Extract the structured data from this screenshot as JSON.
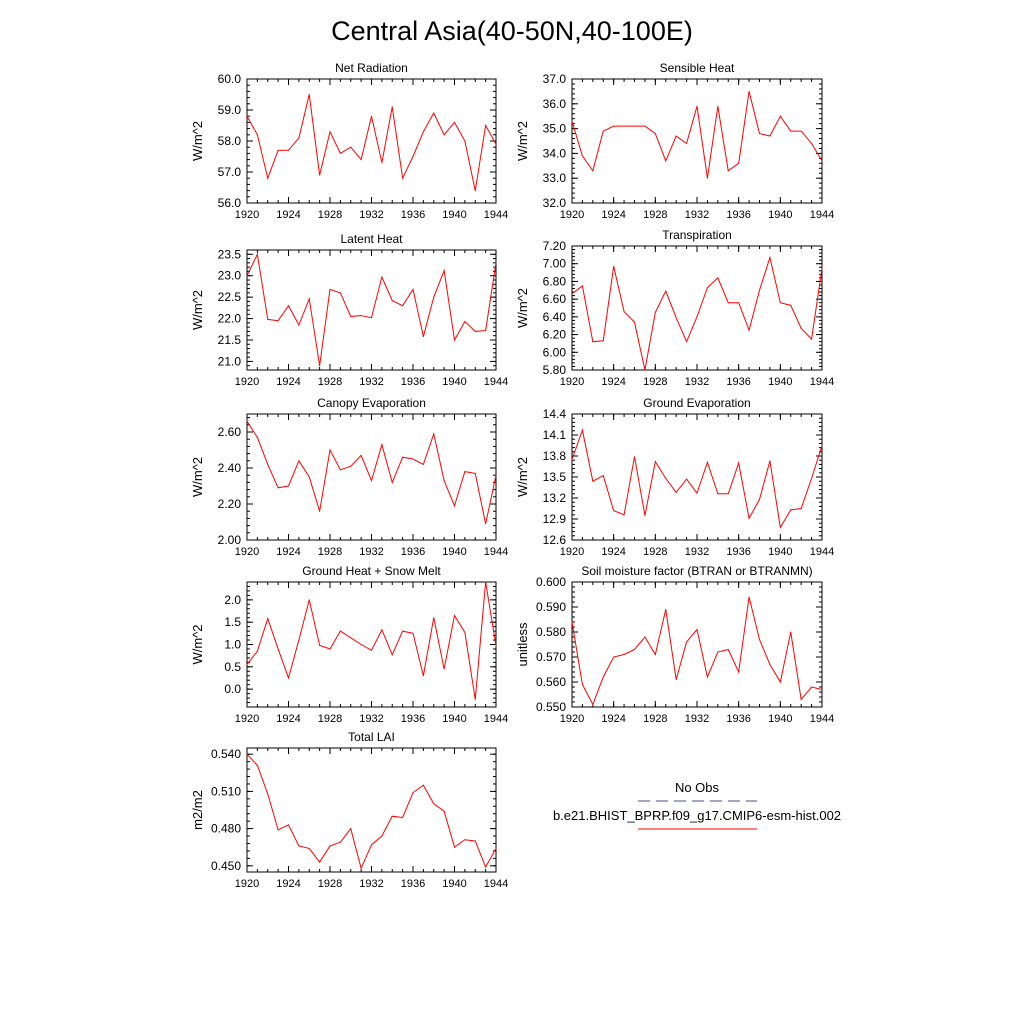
{
  "figure": {
    "title": "Central Asia(40-50N,40-100E)",
    "line_color": "#ff0000",
    "axis_color": "#000000",
    "legend": {
      "obs_label": "No Obs",
      "model_label": "b.e21.BHIST_BPRP.f09_g17.CMIP6-esm-hist.002",
      "obs_style": "dashed",
      "obs_color": "#4a4a8a",
      "model_color": "#ff0000"
    }
  },
  "chart_data": [
    {
      "type": "line",
      "title": "Net Radiation",
      "ylabel": "W/m^2",
      "xlim": [
        1920,
        1944
      ],
      "ylim": [
        56.0,
        60.0
      ],
      "yticks": [
        "56.0",
        "57.0",
        "58.0",
        "59.0",
        "60.0"
      ],
      "xticks": [
        "1920",
        "1924",
        "1928",
        "1932",
        "1936",
        "1940",
        "1944"
      ],
      "x": [
        1920,
        1921,
        1922,
        1923,
        1924,
        1925,
        1926,
        1927,
        1928,
        1929,
        1930,
        1931,
        1932,
        1933,
        1934,
        1935,
        1936,
        1937,
        1938,
        1939,
        1940,
        1941,
        1942,
        1943,
        1944
      ],
      "series": [
        {
          "values": [
            58.8,
            58.2,
            56.8,
            57.7,
            57.7,
            58.1,
            59.5,
            56.9,
            58.3,
            57.6,
            57.8,
            57.4,
            58.8,
            57.3,
            59.1,
            56.8,
            57.5,
            58.3,
            58.9,
            58.2,
            58.6,
            58.0,
            56.4,
            58.5,
            57.9
          ]
        }
      ]
    },
    {
      "type": "line",
      "title": "Sensible Heat",
      "ylabel": "W/m^2",
      "xlim": [
        1920,
        1944
      ],
      "ylim": [
        32.0,
        37.0
      ],
      "yticks": [
        "32.0",
        "33.0",
        "34.0",
        "35.0",
        "36.0",
        "37.0"
      ],
      "xticks": [
        "1920",
        "1924",
        "1928",
        "1932",
        "1936",
        "1940",
        "1944"
      ],
      "x": [
        1920,
        1921,
        1922,
        1923,
        1924,
        1925,
        1926,
        1927,
        1928,
        1929,
        1930,
        1931,
        1932,
        1933,
        1934,
        1935,
        1936,
        1937,
        1938,
        1939,
        1940,
        1941,
        1942,
        1943,
        1944
      ],
      "series": [
        {
          "values": [
            35.3,
            33.9,
            33.3,
            34.9,
            35.1,
            35.1,
            35.1,
            35.1,
            34.8,
            33.7,
            34.7,
            34.4,
            35.9,
            33.0,
            35.9,
            33.3,
            33.6,
            36.5,
            34.8,
            34.7,
            35.5,
            34.9,
            34.9,
            34.4,
            33.7
          ]
        }
      ]
    },
    {
      "type": "line",
      "title": "Latent Heat",
      "ylabel": "W/m^2",
      "xlim": [
        1920,
        1944
      ],
      "ylim": [
        20.8,
        23.6
      ],
      "yticks": [
        "21.0",
        "21.5",
        "22.0",
        "22.5",
        "23.0",
        "23.5"
      ],
      "ytick_values": [
        21.0,
        21.5,
        22.0,
        22.5,
        23.0,
        23.5
      ],
      "xticks": [
        "1920",
        "1924",
        "1928",
        "1932",
        "1936",
        "1940",
        "1944"
      ],
      "x": [
        1920,
        1921,
        1922,
        1923,
        1924,
        1925,
        1926,
        1927,
        1928,
        1929,
        1930,
        1931,
        1932,
        1933,
        1934,
        1935,
        1936,
        1937,
        1938,
        1939,
        1940,
        1941,
        1942,
        1943,
        1944
      ],
      "series": [
        {
          "values": [
            23.0,
            23.5,
            21.98,
            21.95,
            22.3,
            21.85,
            22.46,
            20.9,
            22.68,
            22.6,
            22.05,
            22.07,
            22.02,
            22.97,
            22.42,
            22.3,
            22.68,
            21.58,
            22.5,
            23.12,
            21.5,
            21.93,
            21.7,
            21.72,
            23.3
          ]
        }
      ]
    },
    {
      "type": "line",
      "title": "Transpiration",
      "ylabel": "W/m^2",
      "xlim": [
        1920,
        1944
      ],
      "ylim": [
        5.8,
        7.2
      ],
      "yticks": [
        "5.80",
        "6.00",
        "6.20",
        "6.40",
        "6.60",
        "6.80",
        "7.00",
        "7.20"
      ],
      "xticks": [
        "1920",
        "1924",
        "1928",
        "1932",
        "1936",
        "1940",
        "1944"
      ],
      "x": [
        1920,
        1921,
        1922,
        1923,
        1924,
        1925,
        1926,
        1927,
        1928,
        1929,
        1930,
        1931,
        1932,
        1933,
        1934,
        1935,
        1936,
        1937,
        1938,
        1939,
        1940,
        1941,
        1942,
        1943,
        1944
      ],
      "series": [
        {
          "values": [
            6.66,
            6.75,
            6.12,
            6.13,
            6.97,
            6.46,
            6.34,
            5.8,
            6.45,
            6.69,
            6.39,
            6.12,
            6.4,
            6.73,
            6.84,
            6.56,
            6.56,
            6.25,
            6.7,
            7.07,
            6.56,
            6.53,
            6.27,
            6.15,
            6.95
          ]
        }
      ]
    },
    {
      "type": "line",
      "title": "Canopy Evaporation",
      "ylabel": "W/m^2",
      "xlim": [
        1920,
        1944
      ],
      "ylim": [
        2.0,
        2.7
      ],
      "yticks": [
        "2.00",
        "2.20",
        "2.40",
        "2.60"
      ],
      "ytick_values": [
        2.0,
        2.2,
        2.4,
        2.6
      ],
      "xticks": [
        "1920",
        "1924",
        "1928",
        "1932",
        "1936",
        "1940",
        "1944"
      ],
      "x": [
        1920,
        1921,
        1922,
        1923,
        1924,
        1925,
        1926,
        1927,
        1928,
        1929,
        1930,
        1931,
        1932,
        1933,
        1934,
        1935,
        1936,
        1937,
        1938,
        1939,
        1940,
        1941,
        1942,
        1943,
        1944
      ],
      "series": [
        {
          "values": [
            2.66,
            2.57,
            2.42,
            2.29,
            2.3,
            2.44,
            2.35,
            2.16,
            2.5,
            2.39,
            2.41,
            2.47,
            2.33,
            2.53,
            2.32,
            2.46,
            2.45,
            2.42,
            2.59,
            2.33,
            2.19,
            2.38,
            2.37,
            2.09,
            2.36
          ]
        }
      ]
    },
    {
      "type": "line",
      "title": "Ground Evaporation",
      "ylabel": "W/m^2",
      "xlim": [
        1920,
        1944
      ],
      "ylim": [
        12.6,
        14.4
      ],
      "yticks": [
        "12.6",
        "12.9",
        "13.2",
        "13.5",
        "13.8",
        "14.1",
        "14.4"
      ],
      "xticks": [
        "1920",
        "1924",
        "1928",
        "1932",
        "1936",
        "1940",
        "1944"
      ],
      "x": [
        1920,
        1921,
        1922,
        1923,
        1924,
        1925,
        1926,
        1927,
        1928,
        1929,
        1930,
        1931,
        1932,
        1933,
        1934,
        1935,
        1936,
        1937,
        1938,
        1939,
        1940,
        1941,
        1942,
        1943,
        1944
      ],
      "series": [
        {
          "values": [
            13.75,
            14.17,
            13.44,
            13.52,
            13.02,
            12.96,
            13.79,
            12.95,
            13.72,
            13.48,
            13.28,
            13.47,
            13.27,
            13.71,
            13.26,
            13.26,
            13.7,
            12.91,
            13.18,
            13.73,
            12.78,
            13.03,
            13.05,
            13.48,
            13.95
          ]
        }
      ]
    },
    {
      "type": "line",
      "title": "Ground Heat + Snow Melt",
      "ylabel": "W/m^2",
      "xlim": [
        1920,
        1944
      ],
      "ylim": [
        -0.4,
        2.4
      ],
      "yticks": [
        "0.0",
        "0.5",
        "1.0",
        "1.5",
        "2.0"
      ],
      "ytick_values": [
        0.0,
        0.5,
        1.0,
        1.5,
        2.0
      ],
      "xticks": [
        "1920",
        "1924",
        "1928",
        "1932",
        "1936",
        "1940",
        "1944"
      ],
      "x": [
        1920,
        1921,
        1922,
        1923,
        1924,
        1925,
        1926,
        1927,
        1928,
        1929,
        1930,
        1931,
        1932,
        1933,
        1934,
        1935,
        1936,
        1937,
        1938,
        1939,
        1940,
        1941,
        1942,
        1943,
        1944
      ],
      "series": [
        {
          "values": [
            0.55,
            0.85,
            1.58,
            0.9,
            0.25,
            1.1,
            2.0,
            0.98,
            0.9,
            1.3,
            1.15,
            1.0,
            0.87,
            1.33,
            0.77,
            1.3,
            1.25,
            0.3,
            1.6,
            0.45,
            1.65,
            1.27,
            -0.23,
            2.4,
            0.97
          ]
        }
      ]
    },
    {
      "type": "line",
      "title": "Soil moisture factor (BTRAN or BTRANMN)",
      "ylabel": "unitless",
      "xlim": [
        1920,
        1944
      ],
      "ylim": [
        0.55,
        0.6
      ],
      "yticks": [
        "0.550",
        "0.560",
        "0.570",
        "0.580",
        "0.590",
        "0.600"
      ],
      "xticks": [
        "1920",
        "1924",
        "1928",
        "1932",
        "1936",
        "1940",
        "1944"
      ],
      "x": [
        1920,
        1921,
        1922,
        1923,
        1924,
        1925,
        1926,
        1927,
        1928,
        1929,
        1930,
        1931,
        1932,
        1933,
        1934,
        1935,
        1936,
        1937,
        1938,
        1939,
        1940,
        1941,
        1942,
        1943,
        1944
      ],
      "series": [
        {
          "values": [
            0.584,
            0.559,
            0.551,
            0.562,
            0.57,
            0.571,
            0.573,
            0.578,
            0.571,
            0.589,
            0.561,
            0.576,
            0.581,
            0.562,
            0.572,
            0.573,
            0.564,
            0.594,
            0.577,
            0.567,
            0.56,
            0.58,
            0.553,
            0.558,
            0.557
          ]
        }
      ]
    },
    {
      "type": "line",
      "title": "Total LAI",
      "ylabel": "m2/m2",
      "xlim": [
        1920,
        1944
      ],
      "ylim": [
        0.445,
        0.545
      ],
      "yticks": [
        "0.450",
        "0.480",
        "0.510",
        "0.540"
      ],
      "ytick_values": [
        0.45,
        0.48,
        0.51,
        0.54
      ],
      "xticks": [
        "1920",
        "1924",
        "1928",
        "1932",
        "1936",
        "1940",
        "1944"
      ],
      "x": [
        1920,
        1921,
        1922,
        1923,
        1924,
        1925,
        1926,
        1927,
        1928,
        1929,
        1930,
        1931,
        1932,
        1933,
        1934,
        1935,
        1936,
        1937,
        1938,
        1939,
        1940,
        1941,
        1942,
        1943,
        1944
      ],
      "series": [
        {
          "values": [
            0.54,
            0.531,
            0.508,
            0.479,
            0.483,
            0.466,
            0.464,
            0.453,
            0.466,
            0.469,
            0.48,
            0.448,
            0.467,
            0.474,
            0.49,
            0.489,
            0.509,
            0.515,
            0.5,
            0.494,
            0.465,
            0.471,
            0.47,
            0.449,
            0.464
          ]
        }
      ]
    }
  ]
}
